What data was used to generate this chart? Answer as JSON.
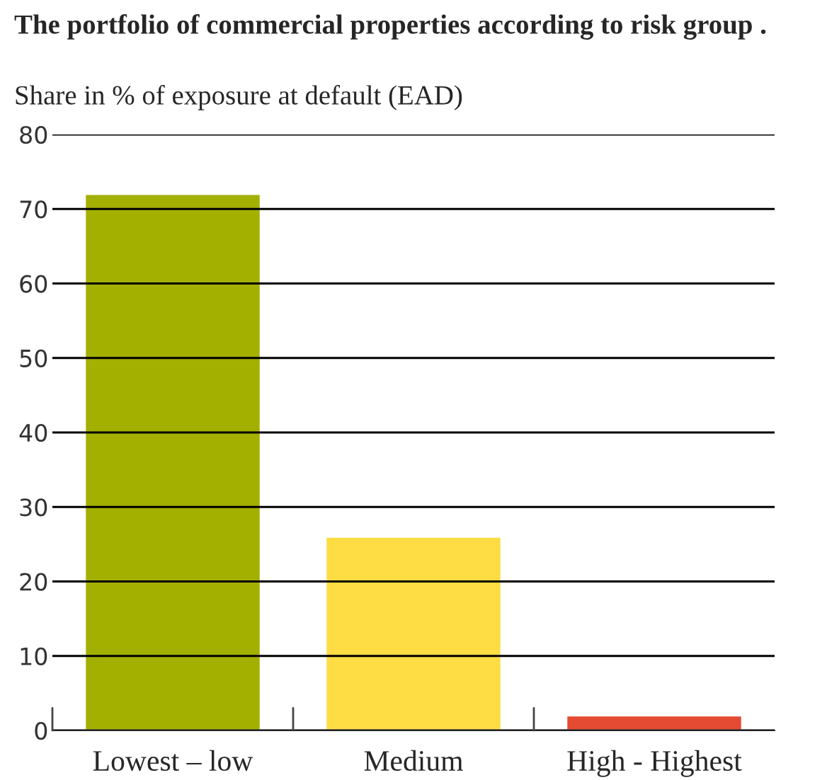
{
  "chart_data": {
    "type": "bar",
    "title": "The portfolio of commercial properties according to risk group .",
    "subtitle": "Share in % of exposure at default (EAD)",
    "categories": [
      "Lowest – low",
      "Medium",
      "High - Highest"
    ],
    "values": [
      72,
      26,
      2
    ],
    "colors": [
      "#a3b000",
      "#fddc44",
      "#e54a33"
    ],
    "ylim": [
      0,
      80
    ],
    "yticks": [
      0,
      10,
      20,
      30,
      40,
      50,
      60,
      70,
      80
    ],
    "grid": "y",
    "legend": false
  }
}
